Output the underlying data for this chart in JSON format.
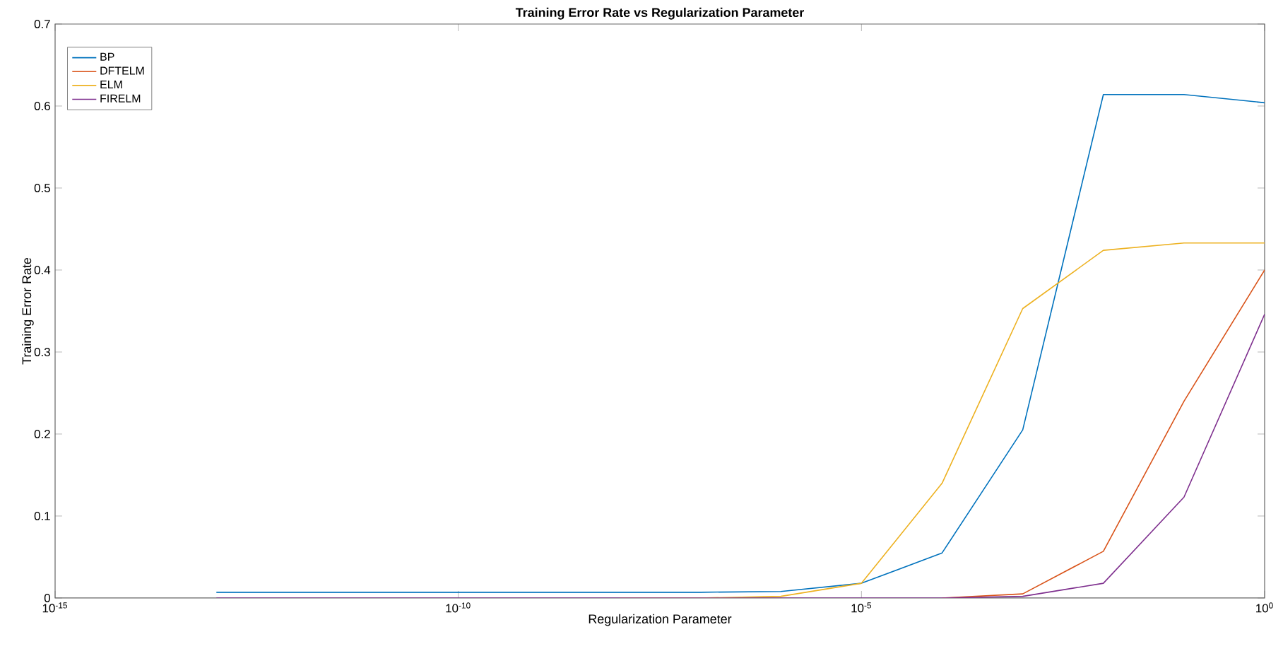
{
  "chart_data": {
    "type": "line",
    "title": "Training Error Rate vs Regularization Parameter",
    "xlabel": "Regularization Parameter",
    "ylabel": "Training Error Rate",
    "x": [
      1e-13,
      1e-12,
      1e-11,
      1e-10,
      1e-09,
      1e-08,
      1e-07,
      1e-06,
      1e-05,
      0.0001,
      0.001,
      0.01,
      0.1,
      1
    ],
    "series": [
      {
        "name": "BP",
        "color": "#0072bd",
        "values": [
          0.007,
          0.007,
          0.007,
          0.007,
          0.007,
          0.007,
          0.007,
          0.008,
          0.018,
          0.055,
          0.205,
          0.614,
          0.614,
          0.604
        ]
      },
      {
        "name": "DFTELM",
        "color": "#d95319",
        "values": [
          null,
          null,
          null,
          null,
          null,
          null,
          null,
          null,
          null,
          0,
          0.005,
          0.057,
          0.24,
          0.4
        ]
      },
      {
        "name": "ELM",
        "color": "#edb120",
        "values": [
          null,
          null,
          null,
          null,
          null,
          0,
          0,
          0.002,
          0.018,
          0.14,
          0.353,
          0.424,
          0.433,
          0.433
        ]
      },
      {
        "name": "FIRELM",
        "color": "#7e2f8e",
        "values": [
          0,
          0,
          0,
          0,
          0,
          0,
          0,
          0,
          0,
          0,
          0.002,
          0.018,
          0.123,
          0.346
        ]
      }
    ],
    "log": "x",
    "xlim": [
      1e-15,
      1
    ],
    "ylim": [
      0,
      0.7
    ],
    "xticks": [
      {
        "value": 1e-15,
        "label": "10$^{-15}$"
      },
      {
        "value": 1e-10,
        "label": "10$^{-10}$"
      },
      {
        "value": 1e-05,
        "label": "10$^{-5}$"
      },
      {
        "value": 1,
        "label": "10$^{0}$"
      }
    ],
    "yticks": [
      0,
      0.1,
      0.2,
      0.3,
      0.4,
      0.5,
      0.6,
      0.7
    ],
    "grid": false,
    "legend": "top left",
    "marker": "none",
    "line_style": "solid"
  }
}
